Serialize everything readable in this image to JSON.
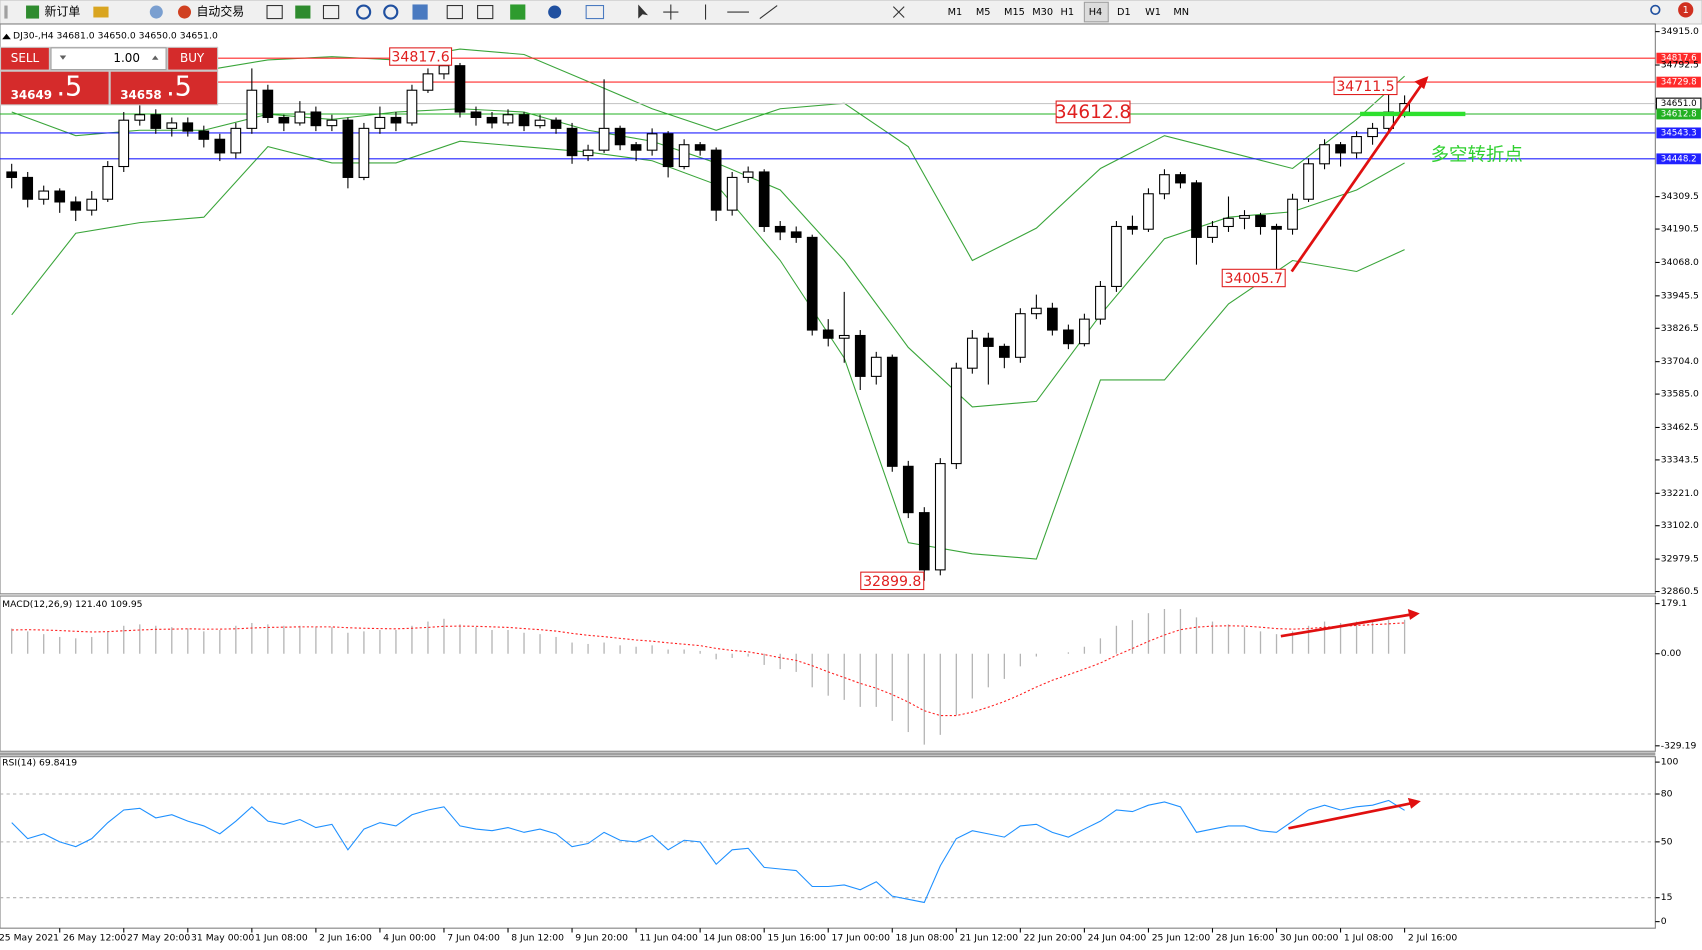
{
  "toolbar": {
    "new_order": "新订单",
    "auto_trading": "自动交易",
    "timeframes": [
      "M1",
      "M5",
      "M15",
      "M30",
      "H1",
      "H4",
      "D1",
      "W1",
      "MN"
    ],
    "active_timeframe": "H4",
    "notifications": 1
  },
  "trade_panel": {
    "sell": "SELL",
    "buy": "BUY",
    "lots": "1.00",
    "sell_price": "34649",
    "sell_pips": ".5",
    "buy_price": "34658",
    "buy_pips": ".5"
  },
  "chart_data": [
    {
      "type": "candlestick",
      "title": "DJ30-,H4  34681.0 34650.0 34650.0 34651.0",
      "up_color": "#ffffff",
      "down_color": "#000000",
      "ohlc": [
        [
          34400,
          34430,
          34340,
          34380
        ],
        [
          34380,
          34400,
          34270,
          34300
        ],
        [
          34300,
          34350,
          34280,
          34330
        ],
        [
          34330,
          34340,
          34250,
          34290
        ],
        [
          34290,
          34310,
          34220,
          34260
        ],
        [
          34260,
          34330,
          34240,
          34300
        ],
        [
          34300,
          34440,
          34290,
          34420
        ],
        [
          34420,
          34620,
          34400,
          34590
        ],
        [
          34590,
          34650,
          34570,
          34610
        ],
        [
          34610,
          34630,
          34540,
          34560
        ],
        [
          34560,
          34600,
          34530,
          34580
        ],
        [
          34580,
          34600,
          34530,
          34550
        ],
        [
          34550,
          34570,
          34490,
          34520
        ],
        [
          34520,
          34540,
          34440,
          34470
        ],
        [
          34470,
          34580,
          34450,
          34560
        ],
        [
          34560,
          34780,
          34540,
          34700
        ],
        [
          34700,
          34720,
          34580,
          34600
        ],
        [
          34600,
          34610,
          34550,
          34580
        ],
        [
          34580,
          34660,
          34570,
          34620
        ],
        [
          34620,
          34640,
          34550,
          34570
        ],
        [
          34570,
          34610,
          34550,
          34590
        ],
        [
          34590,
          34600,
          34340,
          34380
        ],
        [
          34380,
          34580,
          34370,
          34560
        ],
        [
          34560,
          34640,
          34540,
          34600
        ],
        [
          34600,
          34620,
          34550,
          34580
        ],
        [
          34580,
          34720,
          34570,
          34700
        ],
        [
          34700,
          34780,
          34690,
          34760
        ],
        [
          34760,
          34817.6,
          34740,
          34790
        ],
        [
          34790,
          34800,
          34600,
          34620
        ],
        [
          34620,
          34640,
          34570,
          34600
        ],
        [
          34600,
          34620,
          34560,
          34580
        ],
        [
          34580,
          34630,
          34570,
          34610
        ],
        [
          34610,
          34620,
          34550,
          34570
        ],
        [
          34570,
          34610,
          34560,
          34590
        ],
        [
          34590,
          34600,
          34540,
          34560
        ],
        [
          34560,
          34580,
          34430,
          34460
        ],
        [
          34460,
          34500,
          34440,
          34480
        ],
        [
          34480,
          34740,
          34470,
          34560
        ],
        [
          34560,
          34570,
          34480,
          34500
        ],
        [
          34500,
          34510,
          34440,
          34480
        ],
        [
          34480,
          34560,
          34460,
          34540
        ],
        [
          34540,
          34550,
          34380,
          34420
        ],
        [
          34420,
          34520,
          34410,
          34500
        ],
        [
          34500,
          34510,
          34460,
          34480
        ],
        [
          34480,
          34490,
          34220,
          34260
        ],
        [
          34260,
          34400,
          34240,
          34380
        ],
        [
          34380,
          34420,
          34360,
          34400
        ],
        [
          34400,
          34410,
          34180,
          34200
        ],
        [
          34200,
          34220,
          34150,
          34180
        ],
        [
          34180,
          34200,
          34140,
          34160
        ],
        [
          34160,
          34170,
          33800,
          33820
        ],
        [
          33820,
          33860,
          33760,
          33790
        ],
        [
          33790,
          33960,
          33700,
          33800
        ],
        [
          33800,
          33820,
          33600,
          33650
        ],
        [
          33650,
          33740,
          33620,
          33720
        ],
        [
          33720,
          33730,
          33300,
          33320
        ],
        [
          33320,
          33340,
          33130,
          33150
        ],
        [
          33150,
          33170,
          32899.8,
          32940
        ],
        [
          32940,
          33350,
          32920,
          33330
        ],
        [
          33330,
          33700,
          33310,
          33680
        ],
        [
          33680,
          33820,
          33660,
          33790
        ],
        [
          33790,
          33810,
          33620,
          33760
        ],
        [
          33760,
          33770,
          33680,
          33720
        ],
        [
          33720,
          33900,
          33700,
          33880
        ],
        [
          33880,
          33950,
          33860,
          33900
        ],
        [
          33900,
          33920,
          33800,
          33820
        ],
        [
          33820,
          33840,
          33750,
          33770
        ],
        [
          33770,
          33880,
          33760,
          33860
        ],
        [
          33860,
          34000,
          33840,
          33980
        ],
        [
          33980,
          34220,
          33960,
          34200
        ],
        [
          34200,
          34240,
          34170,
          34190
        ],
        [
          34190,
          34340,
          34180,
          34320
        ],
        [
          34320,
          34410,
          34300,
          34390
        ],
        [
          34390,
          34400,
          34340,
          34360
        ],
        [
          34360,
          34370,
          34060,
          34160
        ],
        [
          34160,
          34220,
          34140,
          34200
        ],
        [
          34200,
          34310,
          34180,
          34230
        ],
        [
          34230,
          34260,
          34190,
          34240
        ],
        [
          34240,
          34250,
          34170,
          34200
        ],
        [
          34200,
          34210,
          34005.7,
          34190
        ],
        [
          34190,
          34320,
          34170,
          34300
        ],
        [
          34300,
          34450,
          34290,
          34430
        ],
        [
          34430,
          34520,
          34410,
          34500
        ],
        [
          34500,
          34510,
          34420,
          34470
        ],
        [
          34470,
          34550,
          34450,
          34530
        ],
        [
          34530,
          34580,
          34500,
          34560
        ],
        [
          34560,
          34711.5,
          34540,
          34620
        ],
        [
          34620,
          34681,
          34600,
          34651
        ]
      ],
      "xlim": [
        -0.73,
        102.66
      ],
      "xticks": [
        {
          "value": -1,
          "label": "25 May 2021"
        },
        {
          "value": 3,
          "label": "26 May 12:00"
        },
        {
          "value": 7,
          "label": "27 May 20:00"
        },
        {
          "value": 11,
          "label": "31 May 00:00"
        },
        {
          "value": 15,
          "label": "1 Jun 08:00"
        },
        {
          "value": 19,
          "label": "2 Jun 16:00"
        },
        {
          "value": 23,
          "label": "4 Jun 00:00"
        },
        {
          "value": 27,
          "label": "7 Jun 04:00"
        },
        {
          "value": 31,
          "label": "8 Jun 12:00"
        },
        {
          "value": 35,
          "label": "9 Jun 20:00"
        },
        {
          "value": 39,
          "label": "11 Jun 04:00"
        },
        {
          "value": 43,
          "label": "14 Jun 08:00"
        },
        {
          "value": 47,
          "label": "15 Jun 16:00"
        },
        {
          "value": 51,
          "label": "17 Jun 00:00"
        },
        {
          "value": 55,
          "label": "18 Jun 08:00"
        },
        {
          "value": 59,
          "label": "21 Jun 12:00"
        },
        {
          "value": 63,
          "label": "22 Jun 20:00"
        },
        {
          "value": 67,
          "label": "24 Jun 04:00"
        },
        {
          "value": 71,
          "label": "25 Jun 12:00"
        },
        {
          "value": 75,
          "label": "28 Jun 16:00"
        },
        {
          "value": 79,
          "label": "30 Jun 00:00"
        },
        {
          "value": 83,
          "label": "1 Jul 08:00"
        },
        {
          "value": 87,
          "label": "2 Jul 16:00"
        }
      ],
      "ylim": [
        32852,
        34943
      ],
      "yticks": [
        {
          "value": 34915,
          "label": "34915.0"
        },
        34792.5,
        34309.5,
        34190.5,
        {
          "value": 34068,
          "label": "34068.0"
        },
        33945.5,
        33826.5,
        {
          "value": 33704,
          "label": "33704.0"
        },
        {
          "value": 33585,
          "label": "33585.0"
        },
        33462.5,
        33343.5,
        {
          "value": 33221,
          "label": "33221.0"
        },
        {
          "value": 33102,
          "label": "33102.0"
        },
        32979.5,
        32860.5
      ],
      "bands": [
        {
          "color": "#3aa53a",
          "x": [
            0,
            4,
            8,
            12,
            16,
            20,
            24,
            28,
            32,
            36,
            40,
            44,
            48,
            52,
            56,
            60,
            64,
            68,
            72,
            76,
            80,
            84,
            87
          ],
          "values": [
            34732,
            34792,
            34704,
            34772,
            34811,
            34823,
            34811,
            34851,
            34831,
            34732,
            34632,
            34553,
            34632,
            34652,
            34493,
            34075,
            34194,
            34413,
            34533,
            34473,
            34413,
            34593,
            34752
          ]
        },
        {
          "color": "#3aa53a",
          "x": [
            0,
            4,
            8,
            12,
            16,
            20,
            24,
            28,
            32,
            36,
            40,
            44,
            48,
            52,
            56,
            60,
            64,
            68,
            72,
            76,
            80,
            84,
            87
          ],
          "values": [
            34620,
            34533,
            34553,
            34553,
            34612,
            34593,
            34620,
            34632,
            34620,
            34553,
            34513,
            34433,
            34334,
            34075,
            33756,
            33538,
            33558,
            33876,
            34155,
            34234,
            34254,
            34334,
            34433
          ]
        },
        {
          "color": "#3aa53a",
          "x": [
            0,
            4,
            8,
            12,
            16,
            20,
            24,
            28,
            32,
            36,
            40,
            44,
            48,
            52,
            56,
            60,
            64,
            68,
            72,
            76,
            80,
            84,
            87
          ],
          "values": [
            33876,
            34175,
            34214,
            34234,
            34493,
            34433,
            34433,
            34513,
            34493,
            34473,
            34441,
            34354,
            34075,
            33717,
            33040,
            32999,
            32980,
            33637,
            33637,
            33916,
            34075,
            34035,
            34115
          ]
        }
      ],
      "hlines": [
        {
          "price": 34817.6,
          "color": "#ff2a2a"
        },
        {
          "price": 34729.8,
          "color": "#ff2a2a"
        },
        {
          "price": {
            "value": 34651,
            "label": "34651.0"
          },
          "color": "#c8c8c8"
        },
        {
          "price": 34612.8,
          "color": "#22b022"
        },
        {
          "price": 34543.3,
          "color": "#2020ff"
        },
        {
          "price": 34448.2,
          "color": "#2020ff"
        }
      ],
      "annotations": [
        34817.6,
        34711.5,
        34612.8,
        34005.7,
        32899.8,
        "多空转折点"
      ]
    },
    {
      "type": "macd",
      "title": "MACD(12,26,9) 121.40 109.95",
      "hist_color": "#b4b4b4",
      "signal_color": "#ff2020",
      "histogram": [
        90,
        80,
        70,
        60,
        55,
        60,
        80,
        100,
        105,
        100,
        95,
        90,
        80,
        85,
        100,
        110,
        105,
        100,
        100,
        95,
        95,
        75,
        80,
        85,
        85,
        100,
        115,
        125,
        105,
        95,
        85,
        85,
        75,
        70,
        60,
        40,
        35,
        40,
        30,
        25,
        30,
        15,
        15,
        10,
        -20,
        -15,
        -10,
        -40,
        -55,
        -65,
        -120,
        -150,
        -165,
        -190,
        -190,
        -240,
        -280,
        -325,
        -290,
        -220,
        -160,
        -120,
        -90,
        -45,
        -10,
        0,
        5,
        25,
        55,
        100,
        120,
        145,
        160,
        160,
        130,
        115,
        105,
        95,
        80,
        70,
        80,
        100,
        115,
        110,
        115,
        118,
        120,
        121.4
      ],
      "signal": [
        85,
        86,
        85,
        83,
        80,
        78,
        79,
        82,
        85,
        87,
        88,
        89,
        88,
        88,
        89,
        92,
        94,
        95,
        96,
        96,
        96,
        93,
        91,
        90,
        89,
        91,
        94,
        98,
        99,
        98,
        96,
        94,
        90,
        86,
        81,
        73,
        66,
        61,
        55,
        49,
        45,
        39,
        34,
        29,
        19,
        12,
        7,
        -3,
        -14,
        -24,
        -43,
        -65,
        -85,
        -106,
        -123,
        -146,
        -173,
        -204,
        -221,
        -221,
        -209,
        -191,
        -171,
        -146,
        -119,
        -95,
        -75,
        -55,
        -33,
        -6,
        19,
        44,
        67,
        86,
        95,
        99,
        100,
        99,
        95,
        90,
        88,
        90,
        95,
        98,
        101,
        104,
        107,
        109.95
      ],
      "ylim": [
        -348.6,
        206.3
      ],
      "yticks": [
        179.1,
        {
          "value": 0,
          "label": "0.00"
        },
        -329.19
      ]
    },
    {
      "type": "rsi",
      "title": "RSI(14) 69.8419",
      "color": "#1e90ff",
      "values": [
        62,
        52,
        55,
        50,
        47,
        52,
        62,
        70,
        71,
        65,
        67,
        63,
        60,
        55,
        63,
        72,
        63,
        61,
        64,
        59,
        61,
        45,
        58,
        62,
        60,
        67,
        70,
        72,
        60,
        58,
        57,
        59,
        56,
        58,
        55,
        47,
        49,
        56,
        51,
        50,
        54,
        45,
        51,
        50,
        36,
        45,
        46,
        34,
        33,
        32,
        22,
        22,
        23,
        20,
        25,
        16,
        14,
        12,
        35,
        52,
        57,
        55,
        53,
        60,
        61,
        56,
        53,
        58,
        63,
        70,
        69,
        73,
        75,
        72,
        56,
        58,
        60,
        60,
        57,
        56,
        63,
        70,
        73,
        70,
        72,
        73,
        76,
        69.8
      ],
      "ylim": [
        -4.1,
        103.4
      ],
      "yticks": [
        100,
        80,
        50,
        15,
        0
      ]
    }
  ]
}
